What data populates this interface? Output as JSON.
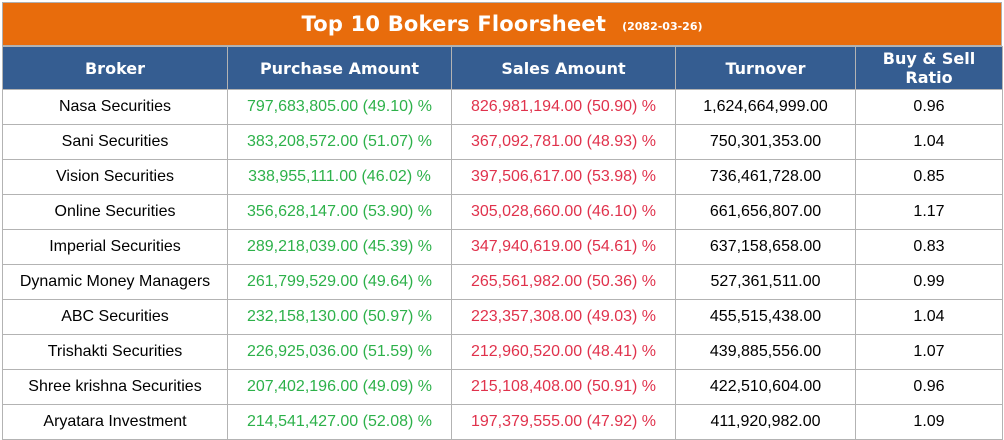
{
  "title": "Top 10 Bokers Floorsheet",
  "date": "(2082-03-26)",
  "columns": [
    "Broker",
    "Purchase Amount",
    "Sales Amount",
    "Turnover",
    "Buy & Sell Ratio"
  ],
  "rows": [
    {
      "broker": "Nasa Securities",
      "purchase": "797,683,805.00 (49.10) %",
      "sales": "826,981,194.00 (50.90) %",
      "turnover": "1,624,664,999.00",
      "ratio": "0.96"
    },
    {
      "broker": "Sani Securities",
      "purchase": "383,208,572.00 (51.07) %",
      "sales": "367,092,781.00 (48.93) %",
      "turnover": "750,301,353.00",
      "ratio": "1.04"
    },
    {
      "broker": "Vision Securities",
      "purchase": "338,955,111.00 (46.02) %",
      "sales": "397,506,617.00 (53.98) %",
      "turnover": "736,461,728.00",
      "ratio": "0.85"
    },
    {
      "broker": "Online Securities",
      "purchase": "356,628,147.00 (53.90) %",
      "sales": "305,028,660.00 (46.10) %",
      "turnover": "661,656,807.00",
      "ratio": "1.17"
    },
    {
      "broker": "Imperial Securities",
      "purchase": "289,218,039.00 (45.39) %",
      "sales": "347,940,619.00 (54.61) %",
      "turnover": "637,158,658.00",
      "ratio": "0.83"
    },
    {
      "broker": "Dynamic Money Managers",
      "purchase": "261,799,529.00 (49.64) %",
      "sales": "265,561,982.00 (50.36) %",
      "turnover": "527,361,511.00",
      "ratio": "0.99"
    },
    {
      "broker": "ABC Securities",
      "purchase": "232,158,130.00 (50.97) %",
      "sales": "223,357,308.00 (49.03) %",
      "turnover": "455,515,438.00",
      "ratio": "1.04"
    },
    {
      "broker": "Trishakti Securities",
      "purchase": "226,925,036.00 (51.59) %",
      "sales": "212,960,520.00 (48.41) %",
      "turnover": "439,885,556.00",
      "ratio": "1.07"
    },
    {
      "broker": "Shree krishna Securities",
      "purchase": "207,402,196.00 (49.09) %",
      "sales": "215,108,408.00 (50.91) %",
      "turnover": "422,510,604.00",
      "ratio": "0.96"
    },
    {
      "broker": "Aryatara Investment",
      "purchase": "214,541,427.00 (52.08) %",
      "sales": "197,379,555.00 (47.92) %",
      "turnover": "411,920,982.00",
      "ratio": "1.09"
    }
  ],
  "colors": {
    "title_bg": "#e86c0c",
    "header_bg": "#355d91",
    "buy": "#2db14a",
    "sell": "#e0324c"
  }
}
